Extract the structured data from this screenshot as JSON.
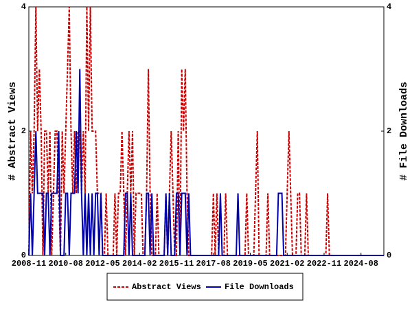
{
  "chart_data": {
    "type": "line",
    "x": [
      "2008-11",
      "2008-12",
      "2009-01",
      "2009-02",
      "2009-03",
      "2009-04",
      "2009-05",
      "2009-06",
      "2009-07",
      "2009-08",
      "2009-09",
      "2009-10",
      "2009-11",
      "2009-12",
      "2010-01",
      "2010-02",
      "2010-03",
      "2010-04",
      "2010-05",
      "2010-06",
      "2010-07",
      "2010-08",
      "2010-09",
      "2010-10",
      "2010-11",
      "2010-12",
      "2011-01",
      "2011-02",
      "2011-03",
      "2011-04",
      "2011-05",
      "2011-06",
      "2011-07",
      "2011-08",
      "2011-09",
      "2011-10",
      "2011-11",
      "2011-12",
      "2012-01",
      "2012-02",
      "2012-03",
      "2012-04",
      "2012-05",
      "2012-06",
      "2012-07",
      "2012-08",
      "2012-09",
      "2012-10",
      "2012-11",
      "2012-12",
      "2013-01",
      "2013-02",
      "2013-03",
      "2013-04",
      "2013-05",
      "2013-06",
      "2013-07",
      "2013-08",
      "2013-09",
      "2013-10",
      "2013-11",
      "2013-12",
      "2014-01",
      "2014-02",
      "2014-03",
      "2014-04",
      "2014-05",
      "2014-06",
      "2014-07",
      "2014-08",
      "2014-09",
      "2014-10",
      "2014-11",
      "2014-12",
      "2015-01",
      "2015-02",
      "2015-03",
      "2015-04",
      "2015-05",
      "2015-06",
      "2015-07",
      "2015-08",
      "2015-09",
      "2015-10",
      "2015-11",
      "2015-12",
      "2016-01",
      "2016-02",
      "2016-03",
      "2016-04",
      "2016-05",
      "2016-06",
      "2016-07",
      "2016-08",
      "2016-09",
      "2016-10",
      "2016-11",
      "2016-12",
      "2017-01",
      "2017-02",
      "2017-03",
      "2017-04",
      "2017-05",
      "2017-06",
      "2017-07",
      "2017-08",
      "2017-09",
      "2017-10",
      "2017-11",
      "2017-12",
      "2018-01",
      "2018-02",
      "2018-03",
      "2018-04",
      "2018-05",
      "2018-06",
      "2018-07",
      "2018-08",
      "2018-09",
      "2018-10",
      "2018-11",
      "2018-12",
      "2019-01",
      "2019-02",
      "2019-03",
      "2019-04",
      "2019-05",
      "2019-06",
      "2019-07",
      "2019-08",
      "2019-09",
      "2019-10",
      "2019-11",
      "2019-12",
      "2020-01",
      "2020-02",
      "2020-03",
      "2020-04",
      "2020-05",
      "2020-06",
      "2020-07",
      "2020-08",
      "2020-09",
      "2020-10",
      "2020-11",
      "2020-12",
      "2021-01",
      "2021-02",
      "2021-03",
      "2021-04",
      "2021-05",
      "2021-06",
      "2021-07",
      "2021-08",
      "2021-09",
      "2021-10",
      "2021-11",
      "2021-12",
      "2022-01",
      "2022-02",
      "2022-03",
      "2022-04",
      "2022-05",
      "2022-06",
      "2022-07",
      "2022-08",
      "2022-09",
      "2022-10",
      "2022-11",
      "2022-12",
      "2023-01",
      "2023-02",
      "2023-03",
      "2023-04",
      "2023-05",
      "2023-06",
      "2023-07",
      "2023-08",
      "2023-09",
      "2023-10",
      "2023-11",
      "2023-12",
      "2024-01",
      "2024-02",
      "2024-03",
      "2024-04",
      "2024-05",
      "2024-06",
      "2024-07",
      "2024-08",
      "2024-09",
      "2024-10",
      "2024-11",
      "2024-12",
      "2025-01",
      "2025-02",
      "2025-03",
      "2025-04",
      "2025-05",
      "2025-06",
      "2025-07",
      "2025-08",
      "2025-09"
    ],
    "xticks": [
      "2008-11",
      "2010-08",
      "2012-05",
      "2014-02",
      "2015-11",
      "2017-08",
      "2019-05",
      "2021-02",
      "2022-11",
      "2024-08"
    ],
    "ylabel": "# Abstract Views",
    "y2label": "# File Downloads",
    "ylim": [
      0,
      4
    ],
    "yticks": [
      0,
      2,
      4
    ],
    "y2lim": [
      0,
      4
    ],
    "y2ticks": [
      0,
      2,
      4
    ],
    "legend": "bottom",
    "series": [
      {
        "name": "Abstract Views",
        "color": "#cc0000",
        "dashed": true,
        "axis": "y",
        "values": [
          0,
          2,
          1,
          2,
          4,
          2,
          3,
          2,
          0,
          2,
          2,
          1,
          2,
          0,
          1,
          2,
          2,
          1,
          0,
          2,
          1,
          2,
          3,
          4,
          2,
          1,
          2,
          1,
          2,
          2,
          1,
          2,
          1,
          4,
          2,
          4,
          2,
          2,
          2,
          1,
          1,
          1,
          0,
          0,
          1,
          0,
          0,
          0,
          0,
          1,
          0,
          1,
          1,
          2,
          1,
          0,
          1,
          2,
          1,
          2,
          0,
          1,
          1,
          1,
          1,
          0,
          0,
          1,
          3,
          1,
          0,
          0,
          0,
          1,
          0,
          0,
          0,
          0,
          1,
          0,
          1,
          2,
          1,
          0,
          0,
          2,
          0,
          3,
          2,
          3,
          1,
          0,
          0,
          0,
          0,
          0,
          0,
          0,
          0,
          0,
          0,
          0,
          0,
          0,
          0,
          1,
          0,
          1,
          0,
          0,
          0,
          0,
          1,
          0,
          0,
          0,
          0,
          0,
          0,
          0,
          0,
          0,
          0,
          0,
          1,
          0,
          0,
          0,
          0,
          1,
          2,
          0,
          0,
          0,
          0,
          0,
          1,
          0,
          0,
          0,
          0,
          0,
          0,
          0,
          0,
          0,
          0,
          1,
          2,
          1,
          0,
          0,
          0,
          1,
          1,
          0,
          0,
          0,
          1,
          0,
          0,
          0,
          0,
          0,
          0,
          0,
          0,
          0,
          0,
          0,
          1,
          0,
          0,
          0,
          0,
          0,
          0,
          0,
          0,
          0,
          0,
          0,
          0,
          0,
          0,
          0,
          0,
          0,
          0,
          0,
          0,
          0,
          0,
          0,
          0,
          0,
          0,
          0,
          0,
          0,
          0,
          0,
          0
        ]
      },
      {
        "name": "File Downloads",
        "color": "#0000aa",
        "dashed": false,
        "axis": "y2",
        "values": [
          0,
          1,
          0,
          1,
          2,
          1,
          1,
          1,
          1,
          0,
          1,
          1,
          0,
          1,
          1,
          1,
          1,
          2,
          0,
          0,
          0,
          1,
          1,
          0,
          1,
          1,
          1,
          2,
          1,
          3,
          1,
          0,
          1,
          0,
          1,
          0,
          1,
          0,
          1,
          1,
          0,
          1,
          0,
          0,
          0,
          0,
          0,
          0,
          0,
          0,
          0,
          0,
          0,
          0,
          0,
          1,
          1,
          0,
          1,
          0,
          0,
          0,
          0,
          0,
          0,
          0,
          0,
          1,
          1,
          0,
          1,
          0,
          0,
          0,
          0,
          0,
          0,
          0,
          1,
          0,
          1,
          0,
          0,
          0,
          1,
          1,
          0,
          1,
          1,
          1,
          0,
          1,
          0,
          0,
          0,
          0,
          0,
          0,
          0,
          0,
          0,
          0,
          0,
          0,
          0,
          0,
          0,
          0,
          0,
          1,
          0,
          0,
          0,
          0,
          0,
          0,
          0,
          0,
          0,
          1,
          0,
          0,
          0,
          0,
          0,
          0,
          0,
          0,
          0,
          0,
          0,
          0,
          0,
          0,
          0,
          0,
          0,
          0,
          0,
          0,
          0,
          0,
          1,
          1,
          1,
          0,
          0,
          0,
          0,
          0,
          0,
          0,
          0,
          0,
          0,
          0,
          0,
          0,
          0,
          0,
          0,
          0,
          0,
          0,
          0,
          0,
          0,
          0,
          0,
          0,
          0,
          0,
          0,
          0,
          0,
          0,
          0,
          0,
          0,
          0,
          0,
          0,
          0,
          0,
          0,
          0,
          0,
          0,
          0,
          0,
          0,
          0,
          0,
          0,
          0,
          0,
          0,
          0,
          0,
          0,
          0,
          0,
          0
        ]
      }
    ]
  }
}
